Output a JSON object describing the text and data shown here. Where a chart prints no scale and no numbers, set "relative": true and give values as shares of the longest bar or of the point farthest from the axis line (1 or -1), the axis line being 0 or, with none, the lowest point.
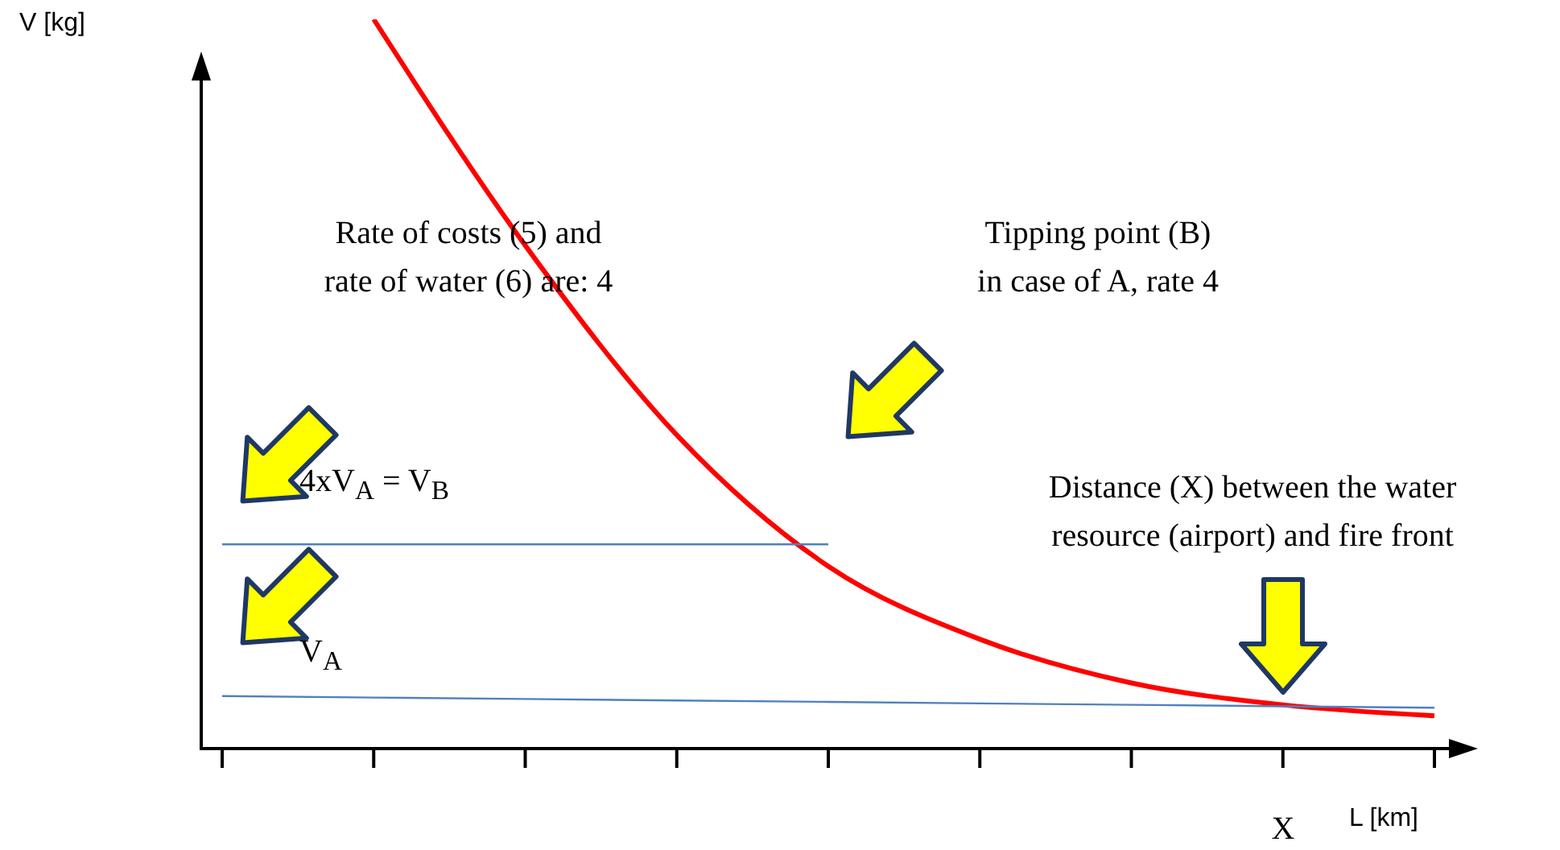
{
  "chart_data": {
    "type": "line",
    "relative": true,
    "xlabel": "L [km]",
    "ylabel": "V [kg]",
    "categories": [
      null,
      null,
      null,
      null,
      null,
      null,
      null,
      null,
      null
    ],
    "series": [
      {
        "color": "#ff0000",
        "values": [
          null,
          1.0,
          0.69,
          0.43,
          0.25,
          0.15,
          0.09,
          0.06,
          0.045
        ]
      },
      {
        "color": "#4f81bd",
        "values": [
          0.28,
          0.28,
          0.28,
          0.28,
          0.28,
          null,
          null,
          null,
          null
        ]
      },
      {
        "color": "#4f81bd",
        "values": [
          0.072,
          0.07,
          0.068,
          0.066,
          0.064,
          0.062,
          0.06,
          0.058,
          0.056
        ]
      }
    ],
    "annotations": [
      "Rate of costs (5) and rate of water (6) are: 4",
      "Tipping point (B) in case of A, rate 4",
      "Distance (X) between the water resource (airport) and fire front",
      "4xV$_{A}$ = V$_{B}$",
      "V$_{A}$",
      "X"
    ],
    "grid": false,
    "legend": false
  }
}
